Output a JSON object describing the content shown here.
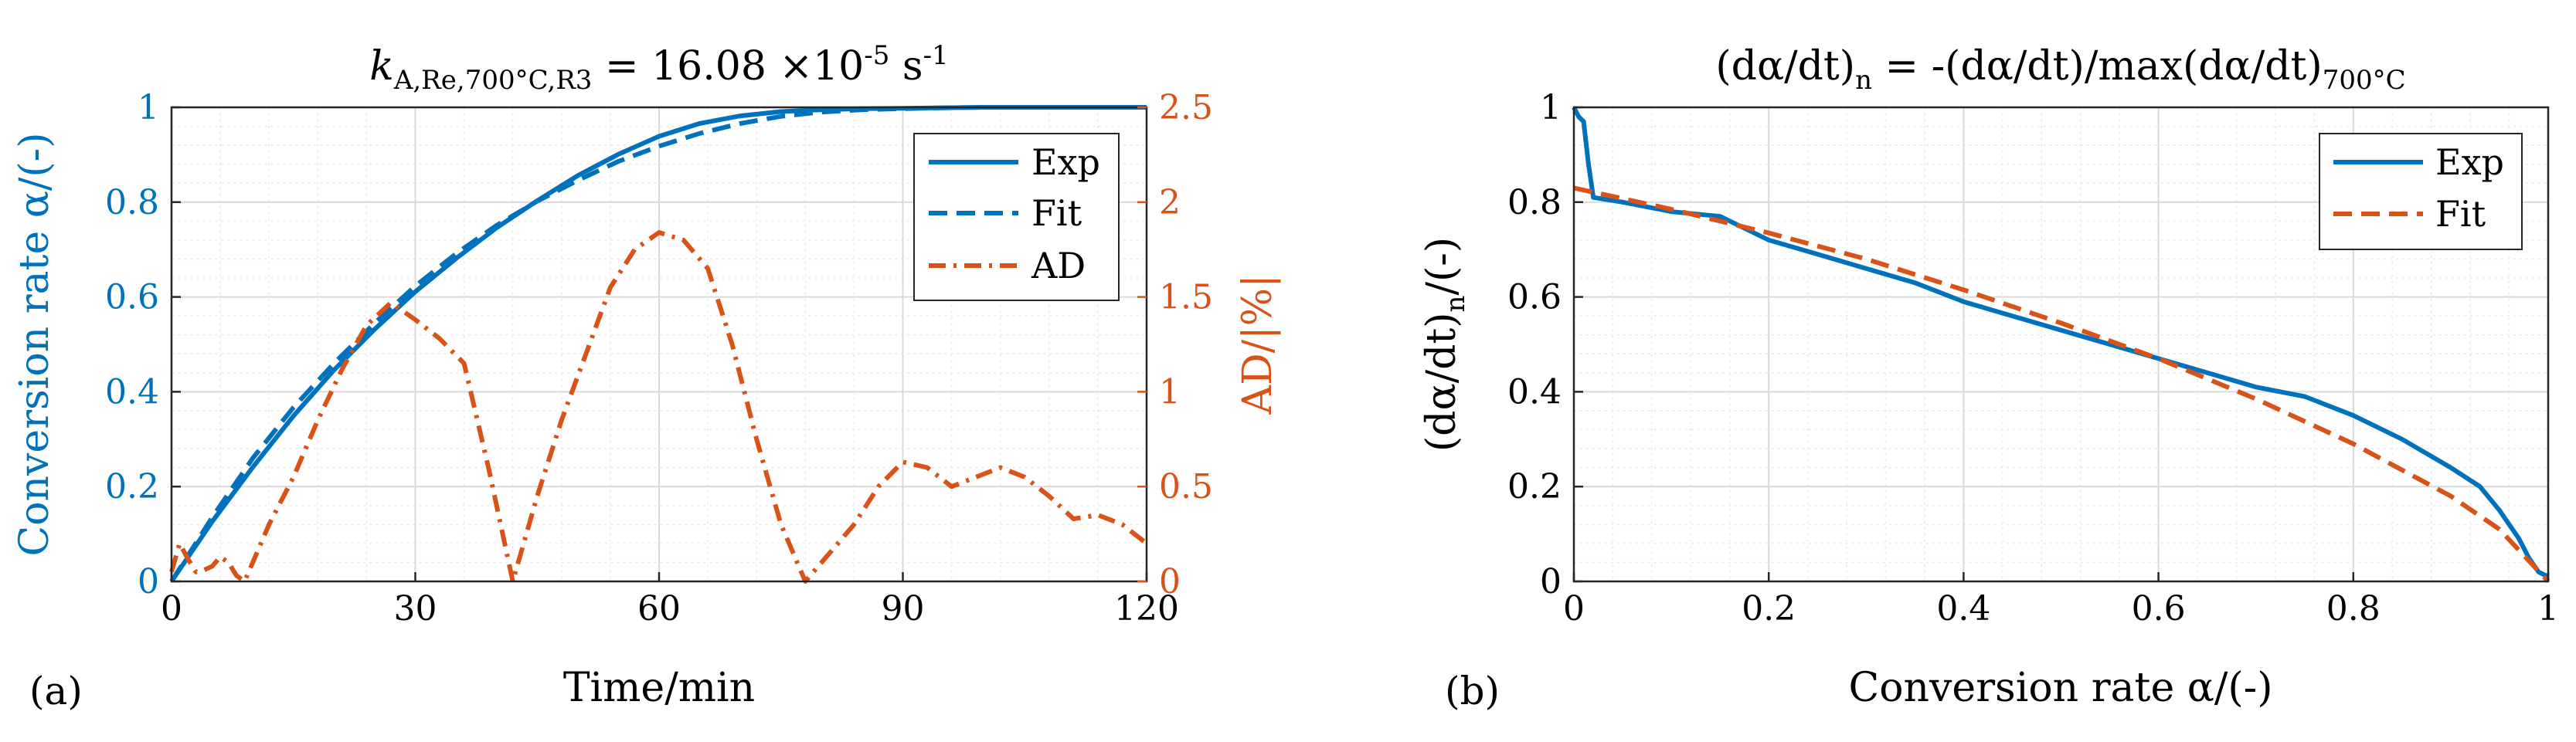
{
  "colors": {
    "blue": "#0072BD",
    "orange": "#D95319",
    "axis": "#262626",
    "grid": "#d9d9d9",
    "minor_grid": "#ebebeb"
  },
  "chart_data": [
    {
      "type": "line",
      "panel_label": "(a)",
      "title": {
        "main": "k",
        "sub": "A,Re,700°C,R3",
        "rest": " = 16.08 ×10",
        "exp": "-5",
        "unit": " s",
        "unit_exp": "-1"
      },
      "xlabel": "Time/min",
      "ylabel": "Conversion rate α/(-)",
      "y2label": "AD/|%|",
      "xlim": [
        0,
        120
      ],
      "ylim": [
        0,
        1
      ],
      "y2lim": [
        0,
        2.5
      ],
      "xticks": [
        "0",
        "30",
        "60",
        "90",
        "120"
      ],
      "yticks": [
        "0",
        "0.2",
        "0.4",
        "0.6",
        "0.8",
        "1"
      ],
      "y2ticks": [
        "0",
        "0.5",
        "1",
        "1.5",
        "2",
        "2.5"
      ],
      "grid": true,
      "legend": {
        "position": "top-right",
        "entries": [
          "Exp",
          "Fit",
          "AD"
        ]
      },
      "series": [
        {
          "name": "Exp",
          "axis": "left",
          "style": "solid",
          "x": [
            0,
            5,
            10,
            15,
            20,
            25,
            30,
            35,
            40,
            45,
            50,
            55,
            60,
            65,
            70,
            75,
            80,
            85,
            90,
            95,
            100,
            110,
            120
          ],
          "y": [
            0,
            0.126,
            0.241,
            0.349,
            0.446,
            0.532,
            0.611,
            0.681,
            0.746,
            0.803,
            0.856,
            0.901,
            0.939,
            0.966,
            0.982,
            0.991,
            0.995,
            0.997,
            0.998,
            0.999,
            1.0,
            1.0,
            1.0
          ]
        },
        {
          "name": "Fit",
          "axis": "left",
          "style": "dashed",
          "x": [
            0,
            5,
            10,
            15,
            20,
            25,
            30,
            35,
            40,
            45,
            50,
            55,
            60,
            65,
            70,
            75,
            80,
            85,
            90,
            95,
            100,
            110,
            120
          ],
          "y": [
            0,
            0.135,
            0.26,
            0.367,
            0.46,
            0.545,
            0.623,
            0.691,
            0.751,
            0.802,
            0.846,
            0.886,
            0.918,
            0.945,
            0.966,
            0.981,
            0.99,
            0.995,
            0.997,
            0.999,
            1.0,
            1.0,
            1.0
          ]
        },
        {
          "name": "AD",
          "axis": "right",
          "style": "dashdot",
          "x": [
            0,
            1,
            2,
            3,
            4,
            5,
            6,
            7,
            8,
            9,
            12,
            15,
            18,
            21,
            24,
            27,
            30,
            33,
            36,
            39,
            42,
            45,
            48,
            51,
            54,
            57,
            60,
            63,
            66,
            69,
            72,
            75,
            78,
            81,
            84,
            87,
            90,
            93,
            96,
            99,
            102,
            105,
            108,
            111,
            114,
            117,
            120
          ],
          "y": [
            0.05,
            0.2,
            0.12,
            0.05,
            0.06,
            0.08,
            0.13,
            0.1,
            0.03,
            0.0,
            0.3,
            0.55,
            0.85,
            1.12,
            1.35,
            1.47,
            1.38,
            1.28,
            1.15,
            0.6,
            0.0,
            0.45,
            0.85,
            1.2,
            1.55,
            1.75,
            1.84,
            1.8,
            1.65,
            1.25,
            0.75,
            0.3,
            0.0,
            0.15,
            0.3,
            0.5,
            0.63,
            0.6,
            0.5,
            0.55,
            0.6,
            0.55,
            0.45,
            0.33,
            0.35,
            0.3,
            0.2
          ]
        }
      ]
    },
    {
      "type": "line",
      "panel_label": "(b)",
      "title": {
        "lhs": "(dα/dt)",
        "lhs_sub": "n",
        "rhs": " = -(dα/dt)/max(dα/dt)",
        "rhs_sub": "700°C"
      },
      "xlabel": "Conversion rate α/(-)",
      "ylabel": {
        "main": "(dα/dt)",
        "sub": "n",
        "rest": "/(-)"
      },
      "xlim": [
        0,
        1
      ],
      "ylim": [
        0,
        1
      ],
      "xticks": [
        "0",
        "0.2",
        "0.4",
        "0.6",
        "0.8",
        "1"
      ],
      "yticks": [
        "0",
        "0.2",
        "0.4",
        "0.6",
        "0.8",
        "1"
      ],
      "grid": true,
      "legend": {
        "position": "top-right",
        "entries": [
          "Exp",
          "Fit"
        ]
      },
      "series": [
        {
          "name": "Exp",
          "style": "solid",
          "x": [
            0,
            0.005,
            0.01,
            0.015,
            0.02,
            0.05,
            0.1,
            0.15,
            0.2,
            0.25,
            0.3,
            0.35,
            0.4,
            0.45,
            0.5,
            0.55,
            0.6,
            0.65,
            0.7,
            0.75,
            0.8,
            0.85,
            0.9,
            0.93,
            0.95,
            0.97,
            0.98,
            0.99,
            1.0
          ],
          "y": [
            1.0,
            0.98,
            0.97,
            0.88,
            0.81,
            0.8,
            0.78,
            0.77,
            0.72,
            0.69,
            0.66,
            0.63,
            0.59,
            0.56,
            0.53,
            0.5,
            0.47,
            0.44,
            0.41,
            0.39,
            0.35,
            0.3,
            0.24,
            0.2,
            0.15,
            0.09,
            0.05,
            0.02,
            0.01
          ]
        },
        {
          "name": "Fit",
          "style": "dashed",
          "x": [
            0,
            0.1,
            0.2,
            0.3,
            0.4,
            0.5,
            0.6,
            0.7,
            0.8,
            0.9,
            0.95,
            1.0
          ],
          "y": [
            0.83,
            0.785,
            0.735,
            0.68,
            0.615,
            0.545,
            0.47,
            0.385,
            0.29,
            0.18,
            0.11,
            0.0
          ]
        }
      ]
    }
  ]
}
